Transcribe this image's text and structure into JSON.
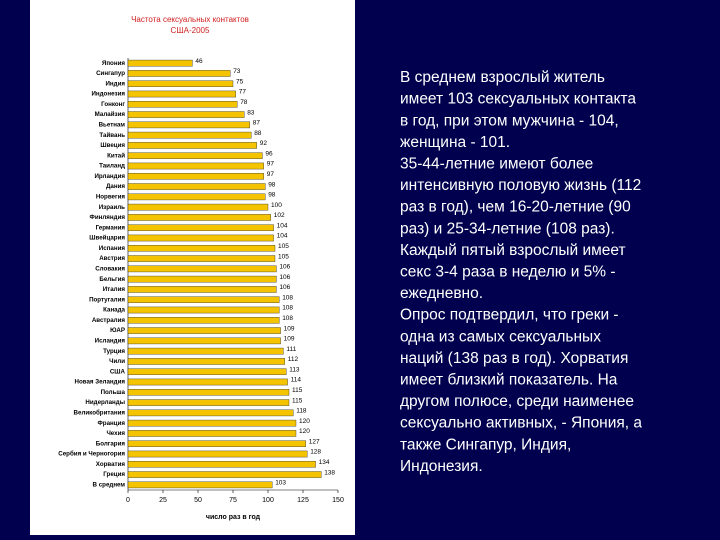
{
  "chart_data": {
    "type": "bar",
    "orientation": "horizontal",
    "title": "Частота сексуальных контактов",
    "subtitle": "США-2005",
    "xlabel": "число раз в год",
    "categories": [
      "Япония",
      "Сингапур",
      "Индия",
      "Индонезия",
      "Гонконг",
      "Малайзия",
      "Вьетнам",
      "Тайвань",
      "Швеция",
      "Китай",
      "Таиланд",
      "Ирландия",
      "Дания",
      "Норвегия",
      "Израиль",
      "Финляндия",
      "Германия",
      "Швейцария",
      "Испания",
      "Австрия",
      "Словакия",
      "Бельгия",
      "Италия",
      "Португалия",
      "Канада",
      "Австралия",
      "ЮАР",
      "Исландия",
      "Турция",
      "Чили",
      "США",
      "Новая Зеландия",
      "Польша",
      "Нидерланды",
      "Великобритания",
      "Франция",
      "Чехия",
      "Болгария",
      "Сербия и Черногория",
      "Хорватия",
      "Греция",
      "В среднем"
    ],
    "values": [
      46,
      73,
      75,
      77,
      78,
      83,
      87,
      88,
      92,
      96,
      97,
      97,
      98,
      98,
      100,
      102,
      104,
      104,
      105,
      105,
      106,
      106,
      106,
      108,
      108,
      108,
      109,
      109,
      111,
      112,
      113,
      114,
      115,
      115,
      118,
      120,
      120,
      127,
      128,
      134,
      138,
      103
    ],
    "color": "#f5c400",
    "xlim": [
      0,
      150
    ],
    "xticks": [
      0,
      25,
      50,
      75,
      100,
      125,
      150
    ]
  },
  "text": [
    "В среднем взрослый житель",
    "имеет 103 сексуальных контакта",
    "в год, при этом мужчина - 104,",
    "женщина - 101.",
    "35-44-летние имеют более",
    "интенсивную половую жизнь (112",
    "раз в год), чем 16-20-летние (90",
    "раз) и 25-34-летние (108 раз).",
    "Каждый пятый взрослый имеет",
    "секс 3-4 раза в неделю и 5% -",
    "ежедневно.",
    "Опрос подтвердил, что греки -",
    "одна из самых сексуальных",
    "наций (138 раз в год). Хорватия",
    "имеет близкий показатель. На",
    "другом полюсе, среди наименее",
    "сексуально активных, - Япония, а",
    "также Сингапур, Индия,",
    "Индонезия."
  ]
}
